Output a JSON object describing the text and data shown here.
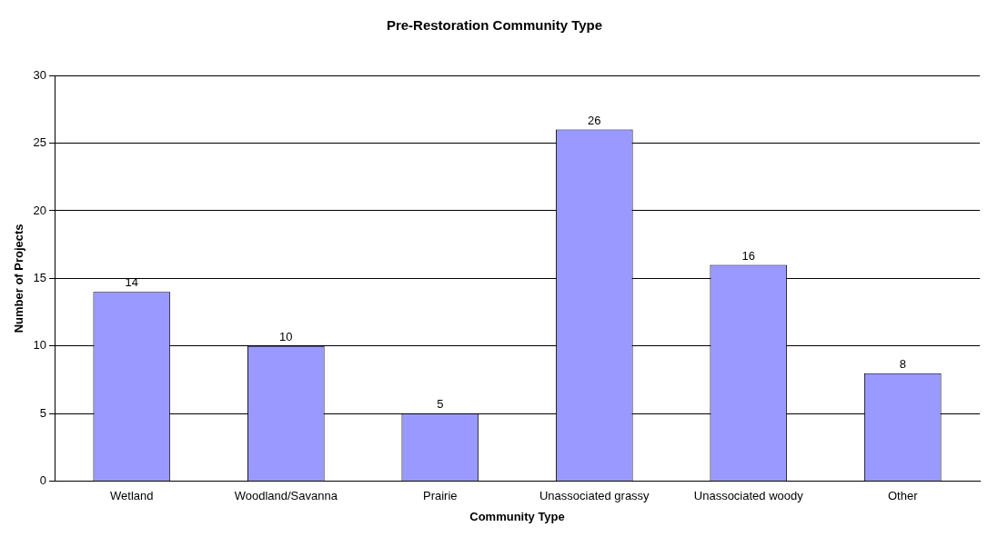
{
  "chart_data": {
    "type": "bar",
    "title": "Pre-Restoration Community Type",
    "xlabel": "Community Type",
    "ylabel": "Number of Projects",
    "categories": [
      "Wetland",
      "Woodland/Savanna",
      "Prairie",
      "Unassociated grassy",
      "Unassociated woody",
      "Other"
    ],
    "values": [
      14,
      10,
      5,
      26,
      16,
      8
    ],
    "color": "#9999ff",
    "ylim": [
      0,
      30
    ],
    "yticks": [
      0,
      5,
      10,
      15,
      20,
      25,
      30
    ],
    "grid": "y",
    "data_labels": true,
    "legend": false
  }
}
